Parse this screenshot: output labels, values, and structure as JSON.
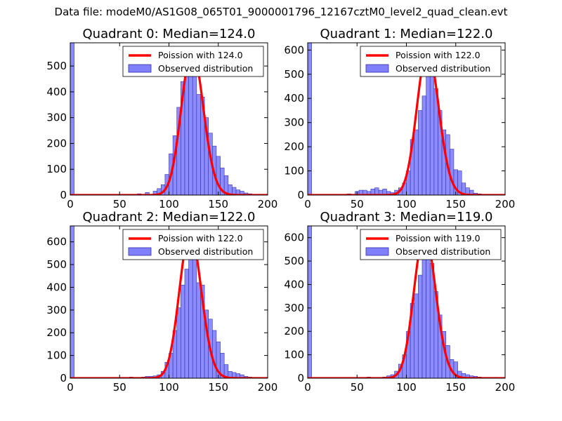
{
  "figure": {
    "suptitle": "Data file: modeM0/AS1G08_065T01_9000001796_12167cztM0_level2_quad_clean.evt"
  },
  "colors": {
    "poisson_line": "#ff0000",
    "histogram_fill": "#7f7fff",
    "histogram_edge": "#3333aa",
    "axes": "#000000"
  },
  "chart_data": [
    {
      "type": "bar",
      "title": "Quadrant 0: Median=124.0",
      "xlim": [
        0,
        200
      ],
      "ylim": [
        0,
        590
      ],
      "xticks": [
        0,
        50,
        100,
        150,
        200
      ],
      "yticks": [
        0,
        100,
        200,
        300,
        400,
        500
      ],
      "bin_width": 4,
      "legend_position": "top-right",
      "legend": [
        "Poission with 124.0",
        "Observed distribution"
      ],
      "histogram": {
        "name": "Observed distribution",
        "x": [
          0,
          60,
          68,
          76,
          84,
          88,
          92,
          96,
          100,
          104,
          108,
          112,
          116,
          120,
          124,
          128,
          132,
          136,
          140,
          144,
          148,
          152,
          156,
          160,
          164,
          168,
          172,
          176,
          180,
          184
        ],
        "values": [
          590,
          3,
          5,
          10,
          15,
          25,
          40,
          80,
          160,
          230,
          340,
          440,
          460,
          475,
          500,
          390,
          380,
          300,
          240,
          190,
          150,
          105,
          75,
          40,
          30,
          20,
          15,
          8,
          5,
          3
        ]
      },
      "poisson": {
        "name": "Poission with 124.0",
        "lambda": 124.0,
        "scale": 560
      }
    },
    {
      "type": "bar",
      "title": "Quadrant 1: Median=122.0",
      "xlim": [
        0,
        200
      ],
      "ylim": [
        0,
        630
      ],
      "xticks": [
        0,
        50,
        100,
        150,
        200
      ],
      "yticks": [
        0,
        100,
        200,
        300,
        400,
        500,
        600
      ],
      "bin_width": 4,
      "legend_position": "top-right",
      "legend": [
        "Poission with 122.0",
        "Observed distribution"
      ],
      "histogram": {
        "name": "Observed distribution",
        "x": [
          0,
          40,
          48,
          52,
          56,
          60,
          64,
          68,
          72,
          76,
          80,
          84,
          88,
          92,
          96,
          100,
          104,
          108,
          112,
          116,
          120,
          124,
          128,
          132,
          136,
          140,
          144,
          148,
          152,
          156,
          160,
          164,
          168,
          172,
          176,
          180
        ],
        "values": [
          630,
          5,
          15,
          20,
          20,
          15,
          25,
          30,
          20,
          25,
          15,
          10,
          20,
          30,
          50,
          100,
          230,
          270,
          350,
          410,
          500,
          540,
          440,
          350,
          270,
          250,
          190,
          105,
          100,
          50,
          30,
          20,
          8,
          5,
          3,
          2
        ]
      },
      "poisson": {
        "name": "Poission with 122.0",
        "lambda": 122.0,
        "scale": 600
      }
    },
    {
      "type": "bar",
      "title": "Quadrant 2: Median=122.0",
      "xlim": [
        0,
        200
      ],
      "ylim": [
        0,
        670
      ],
      "xticks": [
        0,
        50,
        100,
        150,
        200
      ],
      "yticks": [
        0,
        100,
        200,
        300,
        400,
        500,
        600
      ],
      "bin_width": 4,
      "legend_position": "top-right",
      "legend": [
        "Poission with 122.0",
        "Observed distribution"
      ],
      "histogram": {
        "name": "Observed distribution",
        "x": [
          0,
          60,
          72,
          76,
          80,
          84,
          88,
          92,
          96,
          100,
          104,
          108,
          112,
          116,
          120,
          124,
          128,
          132,
          136,
          140,
          144,
          148,
          152,
          156,
          160,
          164,
          168,
          172,
          176,
          180
        ],
        "values": [
          670,
          5,
          5,
          8,
          8,
          10,
          15,
          30,
          70,
          110,
          210,
          310,
          410,
          480,
          560,
          610,
          420,
          410,
          300,
          260,
          210,
          160,
          110,
          60,
          30,
          25,
          20,
          15,
          8,
          5
        ]
      },
      "poisson": {
        "name": "Poission with 122.0",
        "lambda": 122.0,
        "scale": 640
      }
    },
    {
      "type": "bar",
      "title": "Quadrant 3: Median=119.0",
      "xlim": [
        0,
        200
      ],
      "ylim": [
        0,
        650
      ],
      "xticks": [
        0,
        50,
        100,
        150,
        200
      ],
      "yticks": [
        0,
        100,
        200,
        300,
        400,
        500,
        600
      ],
      "bin_width": 4,
      "legend_position": "top-right",
      "legend": [
        "Poission with 119.0",
        "Observed distribution"
      ],
      "histogram": {
        "name": "Observed distribution",
        "x": [
          0,
          60,
          76,
          80,
          84,
          88,
          92,
          96,
          100,
          104,
          108,
          112,
          116,
          120,
          124,
          128,
          132,
          136,
          140,
          144,
          148,
          152,
          156,
          160,
          164,
          168,
          172,
          176,
          180,
          184
        ],
        "values": [
          650,
          5,
          5,
          10,
          15,
          30,
          60,
          100,
          200,
          320,
          360,
          440,
          520,
          510,
          490,
          370,
          270,
          200,
          140,
          80,
          70,
          30,
          20,
          15,
          10,
          8,
          5,
          3,
          2,
          1
        ]
      },
      "poisson": {
        "name": "Poission with 119.0",
        "lambda": 119.0,
        "scale": 620
      }
    }
  ]
}
